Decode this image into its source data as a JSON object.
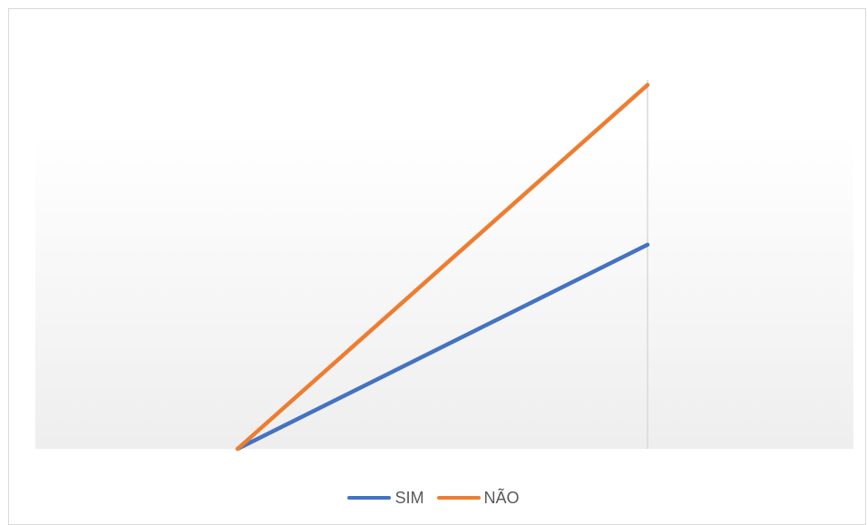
{
  "chart_data": {
    "type": "line",
    "categories": [
      "",
      ""
    ],
    "series": [
      {
        "name": "SIM",
        "values": [
          0,
          1.29
        ],
        "color": "#4472c4"
      },
      {
        "name": "NÃO",
        "values": [
          0,
          2.3
        ],
        "color": "#ed7d31"
      }
    ],
    "ylim": [
      0,
      2
    ],
    "grid": false,
    "legend_position": "bottom",
    "background": "gradient-white-to-light-gray"
  }
}
